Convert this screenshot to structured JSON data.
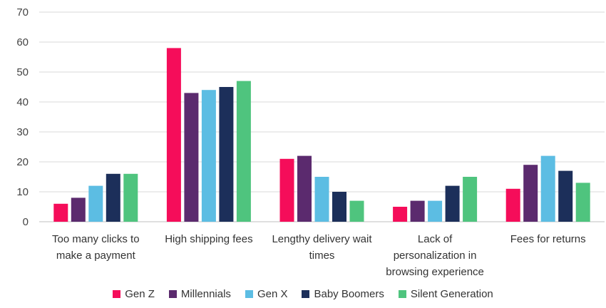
{
  "chart_data": {
    "type": "bar",
    "title": "",
    "xlabel": "",
    "ylabel": "",
    "ylim": [
      0,
      70
    ],
    "yticks": [
      0,
      10,
      20,
      30,
      40,
      50,
      60,
      70
    ],
    "grid": true,
    "legend_position": "bottom",
    "categories": [
      [
        "Too many clicks to",
        "make a payment"
      ],
      [
        "High shipping fees"
      ],
      [
        "Lengthy delivery wait",
        "times"
      ],
      [
        "Lack of",
        "personalization in",
        "browsing experience"
      ],
      [
        "Fees for returns"
      ]
    ],
    "series": [
      {
        "name": "Gen Z",
        "color": "#f50d5a",
        "values": [
          6,
          58,
          21,
          5,
          11
        ]
      },
      {
        "name": "Millennials",
        "color": "#5b2a6e",
        "values": [
          8,
          43,
          22,
          7,
          19
        ]
      },
      {
        "name": "Gen X",
        "color": "#5cbde3",
        "values": [
          12,
          44,
          15,
          7,
          22
        ]
      },
      {
        "name": "Baby Boomers",
        "color": "#1c2f5a",
        "values": [
          16,
          45,
          10,
          12,
          17
        ]
      },
      {
        "name": "Silent Generation",
        "color": "#4fc47e",
        "values": [
          16,
          47,
          7,
          15,
          13
        ]
      }
    ]
  }
}
